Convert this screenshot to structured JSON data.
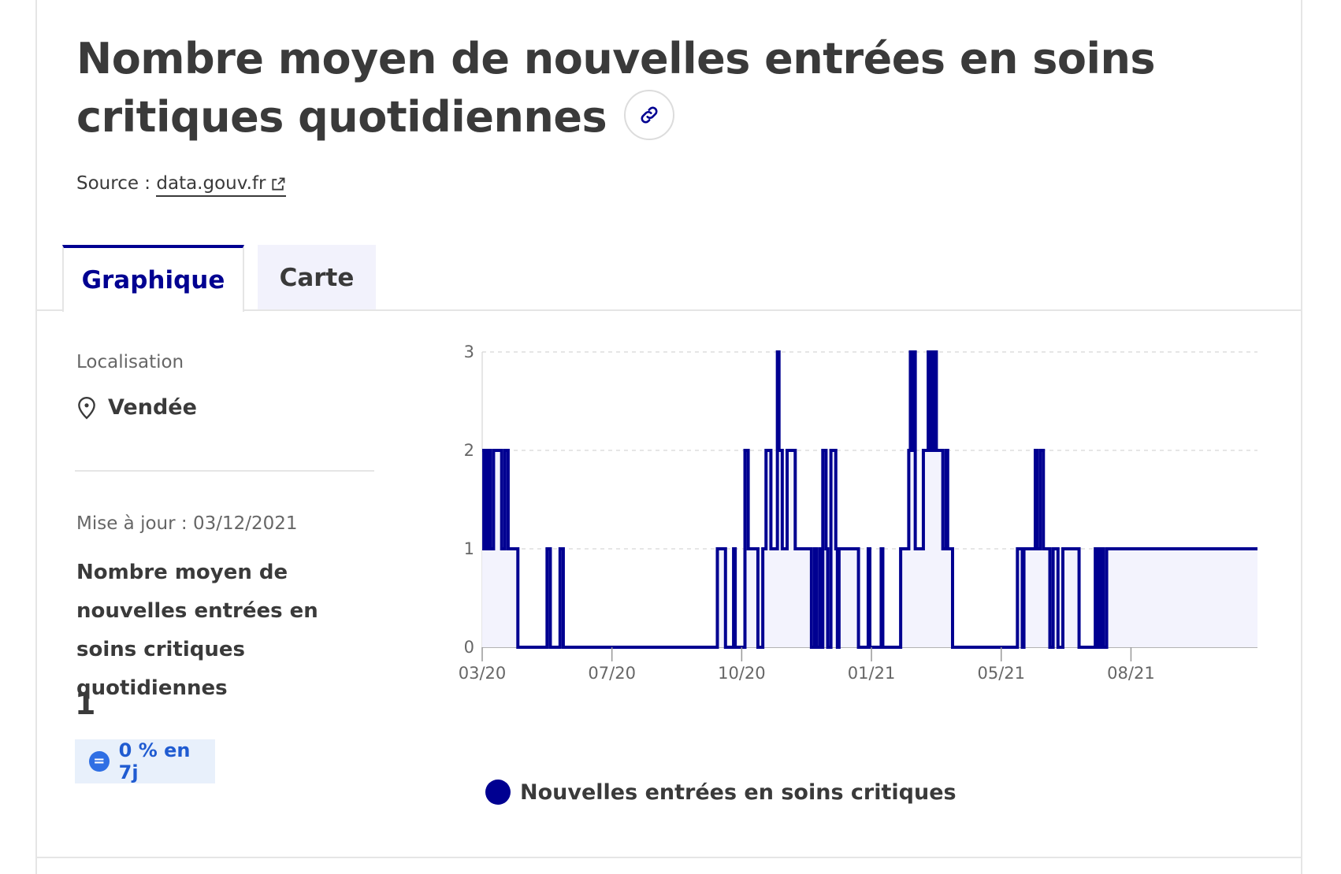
{
  "header": {
    "title": "Nombre moyen de nouvelles entrées en soins critiques quotidiennes",
    "source_prefix": "Source : ",
    "source_link": "data.gouv.fr"
  },
  "tabs": [
    {
      "label": "Graphique",
      "active": true
    },
    {
      "label": "Carte",
      "active": false
    }
  ],
  "sidebar": {
    "location_label": "Localisation",
    "location_value": "Vendée",
    "updated": "Mise à jour : 03/12/2021",
    "kpi_title": "Nombre moyen de nouvelles entrées en soins critiques quotidiennes",
    "kpi_value": "1",
    "badge_icon": "=",
    "badge_text": "0 % en 7j"
  },
  "colors": {
    "accent": "#000091",
    "area_fill": "#f3f3fd",
    "badge_bg": "#e8f0fb",
    "badge_text": "#1f5bd1"
  },
  "chart_data": {
    "type": "line",
    "series": [
      {
        "name": "Nouvelles entrées en soins critiques"
      }
    ],
    "ylim": [
      0,
      3
    ],
    "yticks": [
      "0",
      "1",
      "2",
      "3"
    ],
    "xticks": [
      "03/20",
      "07/20",
      "10/20",
      "01/21",
      "05/21",
      "08/21"
    ],
    "grid": true,
    "legend_position": "bottom",
    "points": [
      [
        0,
        2
      ],
      [
        1,
        1
      ],
      [
        2,
        2
      ],
      [
        3,
        1
      ],
      [
        4,
        2
      ],
      [
        5,
        1
      ],
      [
        7,
        2
      ],
      [
        12,
        1
      ],
      [
        14,
        2
      ],
      [
        16,
        1
      ],
      [
        22,
        0
      ],
      [
        40,
        1
      ],
      [
        42,
        0
      ],
      [
        48,
        1
      ],
      [
        50,
        0
      ],
      [
        145,
        1
      ],
      [
        150,
        0
      ],
      [
        155,
        1
      ],
      [
        156,
        0
      ],
      [
        162,
        2
      ],
      [
        164,
        1
      ],
      [
        170,
        0
      ],
      [
        173,
        1
      ],
      [
        175,
        2
      ],
      [
        178,
        1
      ],
      [
        182,
        3
      ],
      [
        183,
        2
      ],
      [
        185,
        1
      ],
      [
        188,
        2
      ],
      [
        193,
        1
      ],
      [
        203,
        0
      ],
      [
        205,
        1
      ],
      [
        206,
        0
      ],
      [
        208,
        1
      ],
      [
        209,
        0
      ],
      [
        210,
        2
      ],
      [
        212,
        1
      ],
      [
        213,
        0
      ],
      [
        215,
        2
      ],
      [
        218,
        1
      ],
      [
        219,
        0
      ],
      [
        220,
        1
      ],
      [
        224,
        1
      ],
      [
        228,
        1
      ],
      [
        232,
        0
      ],
      [
        238,
        1
      ],
      [
        239,
        0
      ],
      [
        246,
        1
      ],
      [
        247,
        0
      ],
      [
        258,
        1
      ],
      [
        263,
        2
      ],
      [
        264,
        3
      ],
      [
        265,
        2
      ],
      [
        266,
        3
      ],
      [
        267,
        1
      ],
      [
        272,
        2
      ],
      [
        275,
        3
      ],
      [
        276,
        2
      ],
      [
        277,
        3
      ],
      [
        278,
        2
      ],
      [
        279,
        3
      ],
      [
        280,
        2
      ],
      [
        284,
        1
      ],
      [
        286,
        2
      ],
      [
        287,
        1
      ],
      [
        290,
        0
      ],
      [
        330,
        1
      ],
      [
        333,
        0
      ],
      [
        334,
        1
      ],
      [
        338,
        1
      ],
      [
        341,
        2
      ],
      [
        342,
        1
      ],
      [
        344,
        2
      ],
      [
        346,
        1
      ],
      [
        350,
        0
      ],
      [
        352,
        1
      ],
      [
        355,
        0
      ],
      [
        358,
        1
      ],
      [
        368,
        0
      ],
      [
        378,
        1
      ],
      [
        379,
        0
      ],
      [
        380,
        1
      ],
      [
        381,
        0
      ],
      [
        382,
        1
      ],
      [
        383,
        0
      ],
      [
        385,
        1
      ],
      [
        418,
        1
      ]
    ],
    "tick_days": [
      0,
      80,
      160,
      240,
      320,
      400
    ],
    "x_end_day": 478
  }
}
